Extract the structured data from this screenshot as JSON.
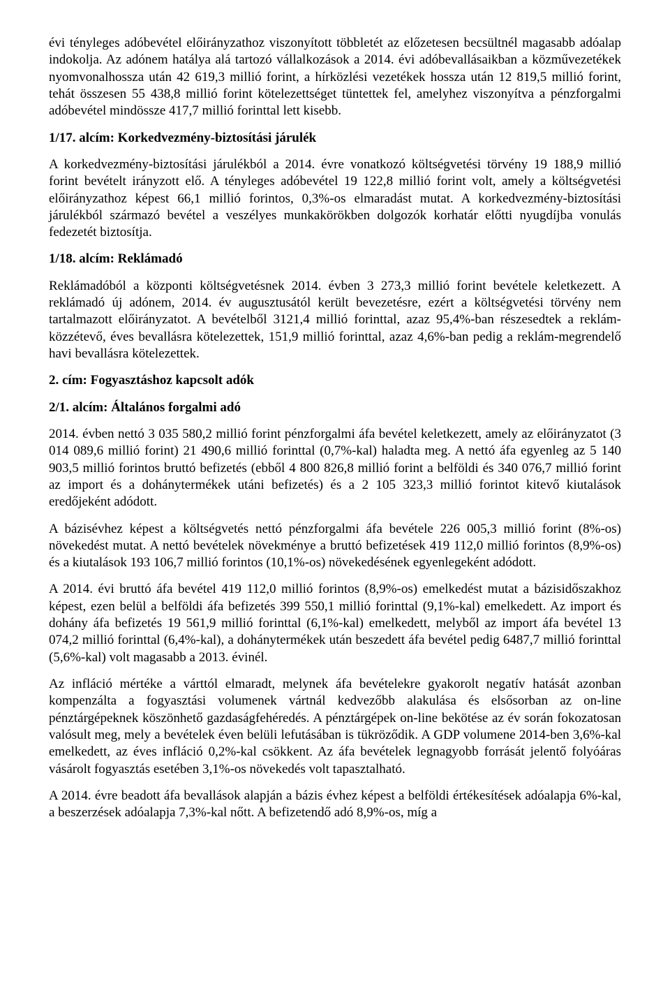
{
  "doc": {
    "p1": "évi tényleges adóbevétel előirányzathoz viszonyított többletét az előzetesen becsültnél magasabb adóalap indokolja. Az adónem hatálya alá tartozó vállalkozások a 2014. évi adóbevallásaikban a közművezetékek nyomvonalhossza után 42 619,3 millió forint, a hírközlési vezetékek hossza után 12 819,5 millió forint, tehát összesen 55 438,8 millió forint kötelezettséget tüntettek fel, amelyhez viszonyítva a pénzforgalmi adóbevétel mindössze 417,7 millió forinttal lett kisebb.",
    "h1": "1/17. alcím: Korkedvezmény-biztosítási járulék",
    "p2": "A korkedvezmény-biztosítási járulékból a 2014. évre vonatkozó költségvetési törvény 19 188,9 millió forint bevételt irányzott elő. A tényleges adóbevétel 19 122,8 millió forint volt, amely a költségvetési előirányzathoz képest 66,1 millió forintos, 0,3%-os elmaradást mutat. A korkedvezmény-biztosítási járulékból származó bevétel a veszélyes munkakörökben dolgozók korhatár előtti nyugdíjba vonulás fedezetét biztosítja.",
    "h2": "1/18. alcím: Reklámadó",
    "p3": "Reklámadóból a központi költségvetésnek 2014. évben 3 273,3 millió forint bevétele keletkezett. A reklámadó új adónem, 2014. év augusztusától került bevezetésre, ezért a költségvetési törvény nem tartalmazott előirányzatot. A bevételből 3121,4 millió forinttal, azaz 95,4%-ban részesedtek a reklám-közzétevő, éves bevallásra kötelezettek, 151,9 millió forinttal, azaz 4,6%-ban pedig a reklám-megrendelő havi bevallásra kötelezettek.",
    "h3": "2. cím: Fogyasztáshoz kapcsolt adók",
    "h4": "2/1. alcím: Általános forgalmi adó",
    "p4": "2014. évben nettó 3 035 580,2 millió forint pénzforgalmi áfa bevétel keletkezett, amely az előirányzatot (3 014 089,6 millió forint) 21 490,6 millió forinttal (0,7%-kal) haladta meg. A nettó áfa egyenleg az 5 140 903,5 millió forintos bruttó befizetés (ebből 4 800 826,8 millió forint a belföldi és 340 076,7 millió forint az import és a dohánytermékek utáni befizetés) és a 2 105 323,3 millió forintot kitevő kiutalások eredőjeként adódott.",
    "p5": "A bázisévhez képest a költségvetés nettó pénzforgalmi áfa bevétele 226 005,3 millió forint (8%-os) növekedést mutat. A nettó bevételek növekménye a bruttó befizetések 419 112,0 millió forintos (8,9%-os) és a kiutalások 193 106,7 millió forintos (10,1%-os) növekedésének egyenlegeként adódott.",
    "p6": "A 2014. évi bruttó áfa bevétel 419 112,0 millió forintos (8,9%-os) emelkedést mutat a bázisidőszakhoz képest, ezen belül a belföldi áfa befizetés 399 550,1 millió forinttal (9,1%-kal) emelkedett. Az import és dohány áfa befizetés 19 561,9 millió forinttal (6,1%-kal) emelkedett, melyből az import áfa bevétel 13 074,2 millió forinttal (6,4%-kal), a dohánytermékek után beszedett áfa bevétel pedig 6487,7 millió forinttal (5,6%-kal) volt magasabb a 2013. évinél.",
    "p7": "Az infláció mértéke a várttól elmaradt, melynek áfa bevételekre gyakorolt negatív hatását azonban kompenzálta a fogyasztási volumenek vártnál kedvezőbb alakulása és elsősorban az on-line pénztárgépeknek köszönhető gazdaságfehéredés. A pénztárgépek on-line bekötése az év során fokozatosan valósult meg, mely a bevételek éven belüli lefutásában is tükröződik. A GDP volumene 2014-ben 3,6%-kal emelkedett, az éves infláció 0,2%-kal csökkent. Az áfa bevételek legnagyobb forrását jelentő folyóáras vásárolt fogyasztás esetében 3,1%-os növekedés volt tapasztalható.",
    "p8": "A 2014. évre beadott áfa bevallások alapján a bázis évhez képest a belföldi értékesítések adóalapja 6%-kal, a beszerzések adóalapja 7,3%-kal nőtt. A befizetendő adó 8,9%-os, míg a"
  }
}
